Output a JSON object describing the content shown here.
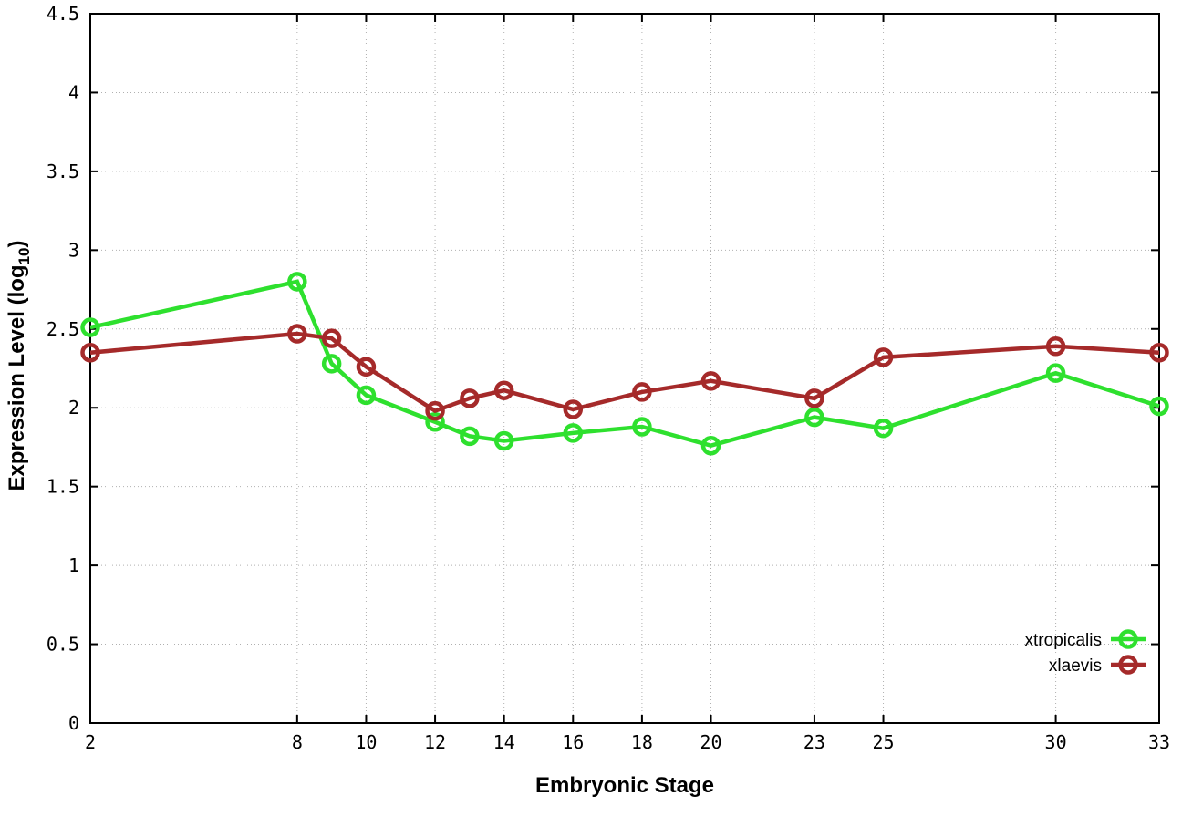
{
  "chart_data": {
    "type": "line",
    "title": "",
    "xlabel": "Embryonic Stage",
    "ylabel": {
      "prefix": "Expression Level (log",
      "sub": "10",
      "suffix": ")"
    },
    "xlim": [
      2,
      33
    ],
    "ylim": [
      0,
      4.5
    ],
    "grid": true,
    "legend_position": "bottom-right",
    "x": [
      2,
      8,
      9,
      10,
      12,
      13,
      14,
      16,
      18,
      20,
      23,
      25,
      30,
      33
    ],
    "xticks": {
      "values": [
        2,
        8,
        10,
        12,
        14,
        16,
        18,
        20,
        23,
        25,
        30,
        33
      ],
      "labels": [
        "2",
        "8",
        "10",
        "12",
        "14",
        "16",
        "18",
        "20",
        "23",
        "25",
        "30",
        "33"
      ]
    },
    "yticks": {
      "values": [
        0,
        0.5,
        1,
        1.5,
        2,
        2.5,
        3,
        3.5,
        4,
        4.5
      ],
      "labels": [
        "0",
        "0.5",
        "1",
        "1.5",
        "2",
        "2.5",
        "3",
        "3.5",
        "4",
        "4.5"
      ]
    },
    "series": [
      {
        "name": "xtropicalis",
        "color": "#2ee02e",
        "marker": "open-circle",
        "values": [
          2.51,
          2.8,
          2.28,
          2.08,
          1.91,
          1.82,
          1.79,
          1.84,
          1.88,
          1.76,
          1.94,
          1.87,
          2.22,
          2.01
        ]
      },
      {
        "name": "xlaevis",
        "color": "#a52a2a",
        "marker": "open-circle",
        "values": [
          2.35,
          2.47,
          2.44,
          2.26,
          1.98,
          2.06,
          2.11,
          1.99,
          2.1,
          2.17,
          2.06,
          2.32,
          2.39,
          2.35
        ]
      }
    ]
  },
  "colors": {
    "background": "#ffffff",
    "plot_border": "#000000",
    "grid": "#b0b0b0",
    "tick_text": "#000000"
  }
}
